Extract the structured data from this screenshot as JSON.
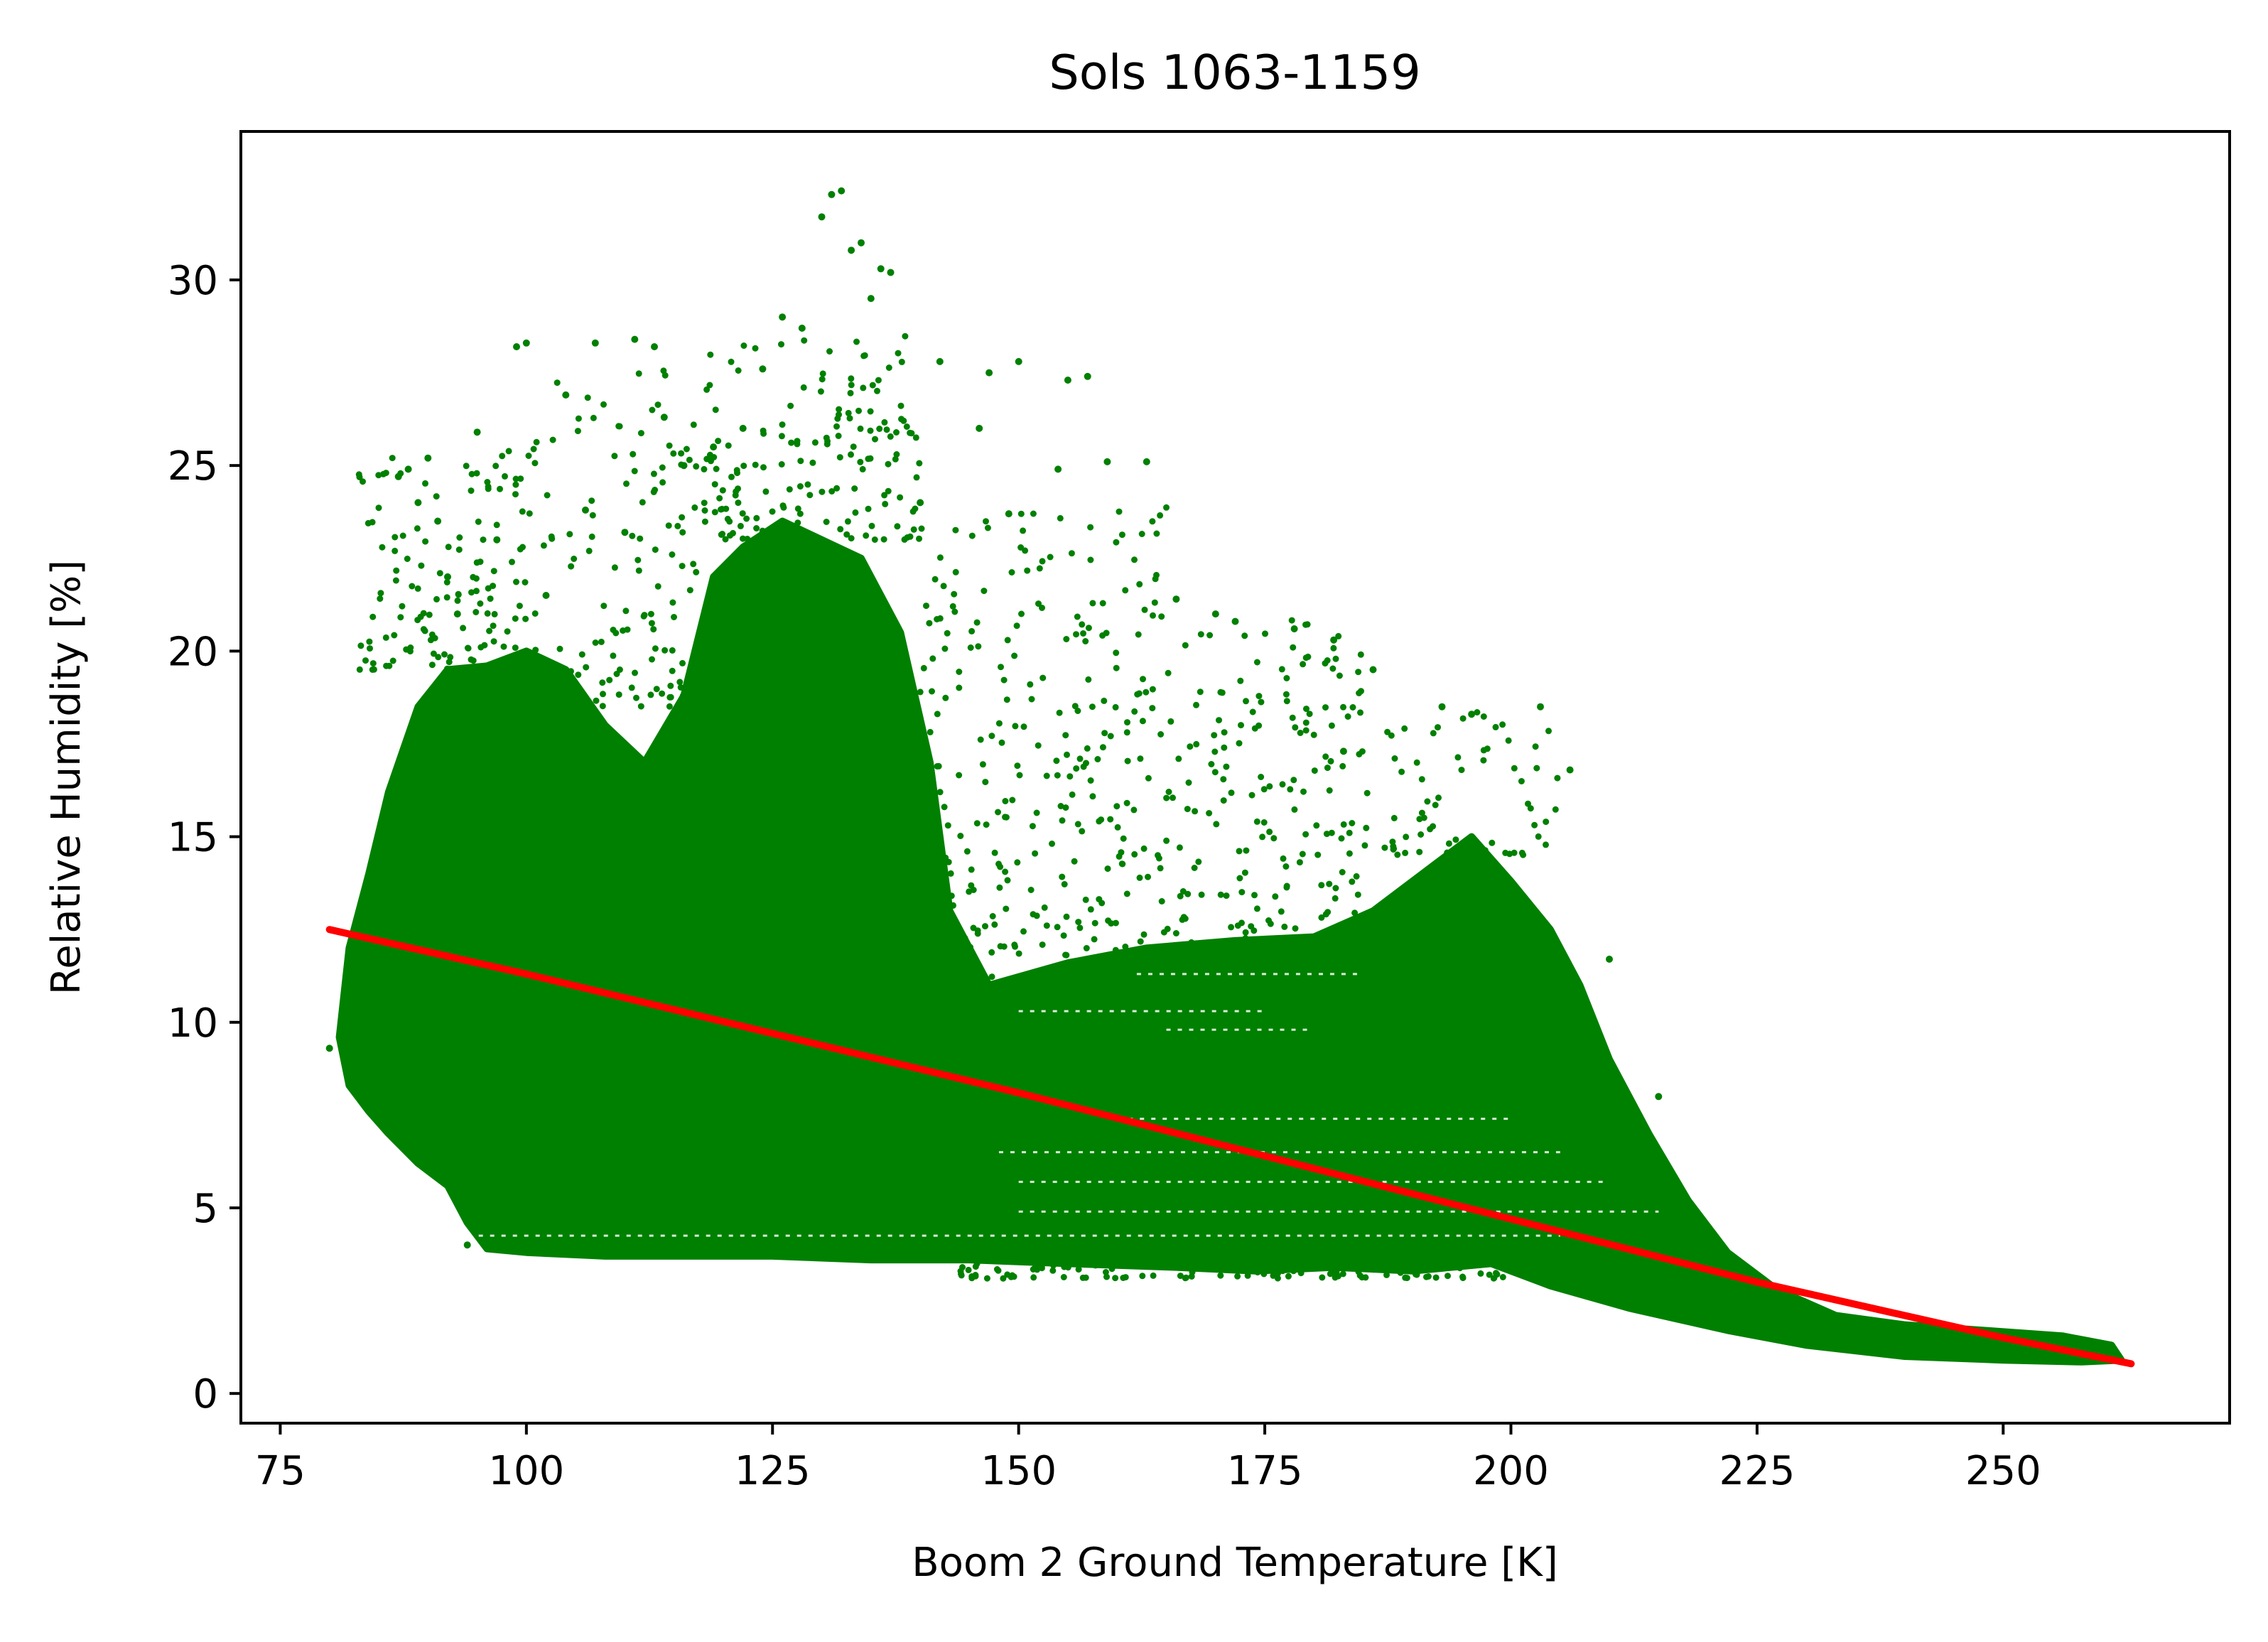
{
  "chart_data": {
    "type": "scatter",
    "title": "Sols 1063-1159",
    "xlabel": "Boom 2 Ground Temperature [K]",
    "ylabel": "Relative Humidity [%]",
    "xlim": [
      71,
      273
    ],
    "ylim": [
      -0.8,
      34
    ],
    "xticks": [
      75,
      100,
      125,
      150,
      175,
      200,
      225,
      250
    ],
    "yticks": [
      0,
      5,
      10,
      15,
      20,
      25,
      30
    ],
    "grid": false,
    "legend": "none",
    "series": [
      {
        "kind": "scatter",
        "color": "#008000",
        "approximate_points": [
          [
            80,
            9.3
          ],
          [
            82,
            9.0
          ],
          [
            84,
            12.0
          ],
          [
            85,
            15.0
          ],
          [
            86,
            14.5
          ],
          [
            87,
            24.7
          ],
          [
            88,
            24.9
          ],
          [
            89,
            24.0
          ],
          [
            90,
            25.2
          ],
          [
            91,
            23.5
          ],
          [
            92,
            22.0
          ],
          [
            93,
            21.0
          ],
          [
            94,
            4.0
          ],
          [
            95,
            25.9
          ],
          [
            97,
            23.0
          ],
          [
            99,
            28.2
          ],
          [
            100,
            28.3
          ],
          [
            102,
            21.5
          ],
          [
            104,
            26.9
          ],
          [
            106,
            23.8
          ],
          [
            107,
            28.3
          ],
          [
            110,
            23.2
          ],
          [
            111,
            28.4
          ],
          [
            113,
            28.2
          ],
          [
            114,
            26.3
          ],
          [
            116,
            25.0
          ],
          [
            119,
            25.5
          ],
          [
            122,
            26.0
          ],
          [
            124,
            27.6
          ],
          [
            126,
            29.0
          ],
          [
            128,
            28.7
          ],
          [
            130,
            31.7
          ],
          [
            131,
            32.3
          ],
          [
            132,
            32.4
          ],
          [
            133,
            30.8
          ],
          [
            134,
            31.0
          ],
          [
            135,
            29.5
          ],
          [
            136,
            30.3
          ],
          [
            137,
            30.2
          ],
          [
            140,
            24.0
          ],
          [
            142,
            27.8
          ],
          [
            146,
            26.0
          ],
          [
            147,
            27.5
          ],
          [
            149,
            23.7
          ],
          [
            150,
            27.8
          ],
          [
            154,
            24.9
          ],
          [
            155,
            27.3
          ],
          [
            157,
            27.4
          ],
          [
            159,
            25.1
          ],
          [
            163,
            25.1
          ],
          [
            166,
            21.4
          ],
          [
            170,
            21.0
          ],
          [
            172,
            20.8
          ],
          [
            178,
            20.6
          ],
          [
            182,
            20.3
          ],
          [
            183,
            17.3
          ],
          [
            186,
            19.5
          ],
          [
            193,
            18.5
          ],
          [
            196,
            18.3
          ],
          [
            203,
            18.5
          ],
          [
            206,
            16.8
          ],
          [
            210,
            11.7
          ],
          [
            215,
            8.0
          ],
          [
            218,
            5.2
          ],
          [
            222,
            3.5
          ],
          [
            226,
            2.7
          ],
          [
            230,
            2.0
          ],
          [
            235,
            1.8
          ],
          [
            240,
            1.7
          ],
          [
            245,
            1.6
          ],
          [
            250,
            1.5
          ],
          [
            255,
            1.4
          ],
          [
            260,
            1.1
          ]
        ]
      },
      {
        "kind": "line",
        "color": "#ff0000",
        "x": [
          80,
          100,
          125,
          150,
          175,
          200,
          225,
          250,
          263
        ],
        "y": [
          12.5,
          11.3,
          9.7,
          8.1,
          6.4,
          4.7,
          3.0,
          1.5,
          0.8
        ]
      }
    ]
  }
}
